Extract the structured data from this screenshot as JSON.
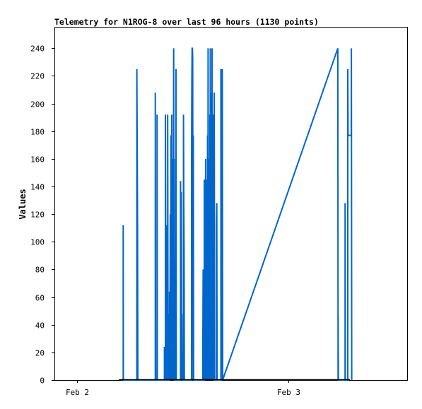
{
  "chart_data": {
    "type": "line",
    "title": "Telemetry for N1ROG-8 over last 96 hours (1130 points)",
    "xlabel": "",
    "ylabel": "Values",
    "ylim": [
      0,
      255
    ],
    "yticks": [
      0,
      20,
      40,
      60,
      80,
      100,
      120,
      140,
      160,
      180,
      200,
      220,
      240
    ],
    "xlim": [
      "2024-02-01T21:30",
      "2024-02-03T13:30"
    ],
    "xticks": [
      {
        "label": "Feb 2",
        "value": "2024-02-02T00:00"
      },
      {
        "label": "Feb 3",
        "value": "2024-02-03T00:00"
      }
    ],
    "grid": false,
    "legend": "none",
    "colors": {
      "series": "#0066cc",
      "axis": "#000000",
      "baseline": "#000000"
    },
    "baseline": {
      "from": "2024-02-02T04:45",
      "to": "2024-02-03T07:00",
      "value": 0
    },
    "series": [
      {
        "values": [
          [
            "2024-02-02T05:14",
            0
          ],
          [
            "2024-02-02T05:14",
            112
          ],
          [
            "2024-02-02T05:15",
            0
          ],
          [
            "2024-02-02T06:47",
            0
          ],
          [
            "2024-02-02T06:47",
            225
          ],
          [
            "2024-02-02T06:52",
            112
          ],
          [
            "2024-02-02T06:54",
            0
          ],
          [
            "2024-02-02T08:53",
            0
          ],
          [
            "2024-02-02T08:53",
            208
          ],
          [
            "2024-02-02T08:55",
            0
          ],
          [
            "2024-02-02T09:05",
            0
          ],
          [
            "2024-02-02T09:05",
            192
          ],
          [
            "2024-02-02T09:06",
            97
          ],
          [
            "2024-02-02T09:07",
            0
          ],
          [
            "2024-02-02T09:55",
            0
          ],
          [
            "2024-02-02T09:55",
            24
          ],
          [
            "2024-02-02T10:00",
            0
          ],
          [
            "2024-02-02T10:02",
            0
          ],
          [
            "2024-02-02T10:02",
            192
          ],
          [
            "2024-02-02T10:05",
            48
          ],
          [
            "2024-02-02T10:06",
            0
          ],
          [
            "2024-02-02T10:07",
            112
          ],
          [
            "2024-02-02T10:09",
            80
          ],
          [
            "2024-02-02T10:11",
            0
          ],
          [
            "2024-02-02T10:17",
            0
          ],
          [
            "2024-02-02T10:17",
            192
          ],
          [
            "2024-02-02T10:20",
            0
          ],
          [
            "2024-02-02T10:22",
            48
          ],
          [
            "2024-02-02T10:24",
            0
          ],
          [
            "2024-02-02T10:30",
            0
          ],
          [
            "2024-02-02T10:30",
            64
          ],
          [
            "2024-02-02T10:32",
            0
          ],
          [
            "2024-02-02T10:35",
            120
          ],
          [
            "2024-02-02T10:37",
            0
          ],
          [
            "2024-02-02T10:40",
            177
          ],
          [
            "2024-02-02T10:42",
            0
          ],
          [
            "2024-02-02T10:45",
            192
          ],
          [
            "2024-02-02T10:47",
            0
          ],
          [
            "2024-02-02T10:50",
            160
          ],
          [
            "2024-02-02T10:52",
            0
          ],
          [
            "2024-02-02T10:54",
            96
          ],
          [
            "2024-02-02T10:56",
            0
          ],
          [
            "2024-02-02T10:58",
            240
          ],
          [
            "2024-02-02T11:00",
            0
          ],
          [
            "2024-02-02T11:02",
            160
          ],
          [
            "2024-02-02T11:04",
            0
          ],
          [
            "2024-02-02T11:10",
            0
          ],
          [
            "2024-02-02T11:10",
            17
          ],
          [
            "2024-02-02T11:12",
            0
          ],
          [
            "2024-02-02T11:14",
            225
          ],
          [
            "2024-02-02T11:16",
            0
          ],
          [
            "2024-02-02T11:45",
            0
          ],
          [
            "2024-02-02T11:45",
            144
          ],
          [
            "2024-02-02T11:47",
            0
          ],
          [
            "2024-02-02T11:50",
            136
          ],
          [
            "2024-02-02T11:52",
            32
          ],
          [
            "2024-02-02T11:54",
            48
          ],
          [
            "2024-02-02T11:56",
            0
          ],
          [
            "2024-02-02T12:05",
            0
          ],
          [
            "2024-02-02T12:05",
            192
          ],
          [
            "2024-02-02T12:07",
            128
          ],
          [
            "2024-02-02T12:09",
            97
          ],
          [
            "2024-02-02T12:11",
            0
          ],
          [
            "2024-02-02T13:00",
            0
          ],
          [
            "2024-02-02T13:00",
            160
          ],
          [
            "2024-02-02T13:02",
            216
          ],
          [
            "2024-02-02T13:04",
            240
          ],
          [
            "2024-02-02T13:06",
            240
          ],
          [
            "2024-02-02T13:08",
            232
          ],
          [
            "2024-02-02T13:10",
            0
          ],
          [
            "2024-02-02T13:12",
            177
          ],
          [
            "2024-02-02T13:14",
            0
          ],
          [
            "2024-02-02T14:17",
            0
          ],
          [
            "2024-02-02T14:17",
            33
          ],
          [
            "2024-02-02T14:19",
            80
          ],
          [
            "2024-02-02T14:21",
            0
          ],
          [
            "2024-02-02T14:27",
            0
          ],
          [
            "2024-02-02T14:27",
            145
          ],
          [
            "2024-02-02T14:29",
            0
          ],
          [
            "2024-02-02T14:32",
            145
          ],
          [
            "2024-02-02T14:34",
            0
          ],
          [
            "2024-02-02T14:36",
            160
          ],
          [
            "2024-02-02T14:38",
            0
          ],
          [
            "2024-02-02T14:40",
            145
          ],
          [
            "2024-02-02T14:42",
            0
          ],
          [
            "2024-02-02T14:45",
            145
          ],
          [
            "2024-02-02T14:47",
            0
          ],
          [
            "2024-02-02T14:49",
            177
          ],
          [
            "2024-02-02T14:51",
            0
          ],
          [
            "2024-02-02T14:53",
            240
          ],
          [
            "2024-02-02T14:55",
            0
          ],
          [
            "2024-02-02T14:57",
            145
          ],
          [
            "2024-02-02T14:59",
            0
          ],
          [
            "2024-02-02T15:01",
            160
          ],
          [
            "2024-02-02T15:03",
            0
          ],
          [
            "2024-02-02T15:05",
            192
          ],
          [
            "2024-02-02T15:07",
            0
          ],
          [
            "2024-02-02T15:08",
            240
          ],
          [
            "2024-02-02T15:10",
            0
          ],
          [
            "2024-02-02T15:12",
            208
          ],
          [
            "2024-02-02T15:14",
            0
          ],
          [
            "2024-02-02T15:16",
            177
          ],
          [
            "2024-02-02T15:18",
            0
          ],
          [
            "2024-02-02T15:20",
            240
          ],
          [
            "2024-02-02T15:22",
            0
          ],
          [
            "2024-02-02T15:24",
            192
          ],
          [
            "2024-02-02T15:26",
            0
          ],
          [
            "2024-02-02T15:28",
            192
          ],
          [
            "2024-02-02T15:30",
            0
          ],
          [
            "2024-02-02T15:35",
            208
          ],
          [
            "2024-02-02T15:37",
            0
          ],
          [
            "2024-02-02T15:50",
            0
          ],
          [
            "2024-02-02T15:50",
            112
          ],
          [
            "2024-02-02T15:52",
            128
          ],
          [
            "2024-02-02T15:54",
            0
          ],
          [
            "2024-02-02T16:20",
            0
          ],
          [
            "2024-02-02T16:20",
            225
          ],
          [
            "2024-02-02T16:22",
            0
          ],
          [
            "2024-02-02T16:30",
            225
          ],
          [
            "2024-02-02T16:32",
            0
          ],
          [
            "2024-02-03T05:37",
            240
          ],
          [
            "2024-02-03T05:39",
            0
          ],
          [
            "2024-02-03T05:39",
            48
          ],
          [
            "2024-02-03T05:41",
            0
          ],
          [
            "2024-02-03T06:27",
            0
          ],
          [
            "2024-02-03T06:27",
            128
          ],
          [
            "2024-02-03T06:29",
            0
          ],
          [
            "2024-02-03T06:45",
            0
          ],
          [
            "2024-02-03T06:45",
            225
          ],
          [
            "2024-02-03T06:47",
            177
          ],
          [
            "2024-02-03T07:09",
            177
          ],
          [
            "2024-02-03T07:10",
            240
          ],
          [
            "2024-02-03T07:12",
            0
          ]
        ]
      }
    ]
  }
}
